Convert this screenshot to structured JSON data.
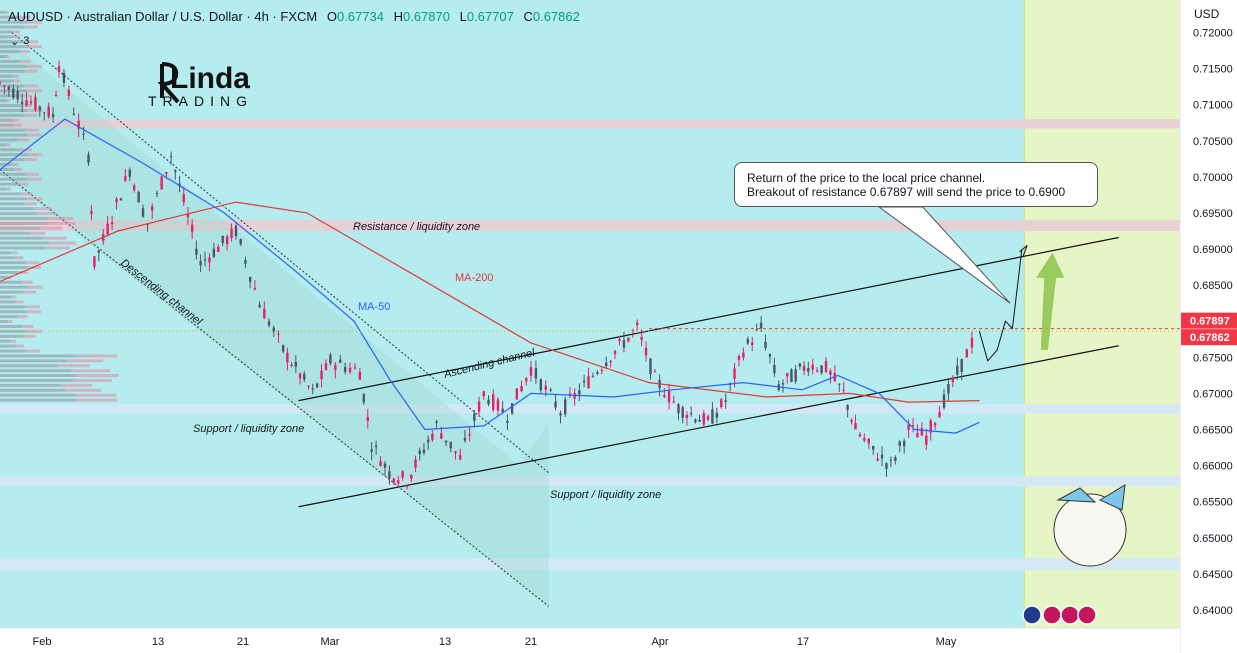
{
  "header": {
    "symbol": "AUDUSD",
    "description": "· Australian Dollar / U.S. Dollar · 4h · FXCM",
    "open_label": "O",
    "open": "0.67734",
    "high_label": "H",
    "high": "0.67870",
    "low_label": "L",
    "low": "0.67707",
    "close_label": "C",
    "close": "0.67862",
    "indicator_count": "3"
  },
  "currency": "USD",
  "logo": {
    "text": "Linda",
    "subtitle": "TRADING"
  },
  "callout": {
    "line1": "Return of the price to the local price channel.",
    "line2": "Breakout of resistance 0.67897 will send the price to 0.6900"
  },
  "colors": {
    "background_main": "#b4ecf0",
    "forecast_zone": "#e6f5c6",
    "zone_pink": "#e8cfd4",
    "zone_blue": "#d4e8f8",
    "ma200": "#e53935",
    "ma50": "#2962ff",
    "candle_up": "#e91e63",
    "candle_down": "#4a5568",
    "price_label_red": "#f23645",
    "forecast_arrow": "#8bc34a"
  },
  "chart_data": {
    "type": "candlestick",
    "ylim": [
      0.6375,
      0.7245
    ],
    "y_ticks": [
      "0.72000",
      "0.71500",
      "0.71000",
      "0.70500",
      "0.70000",
      "0.69500",
      "0.69000",
      "0.68500",
      "0.68000",
      "0.67500",
      "0.67000",
      "0.66500",
      "0.66000",
      "0.65500",
      "0.65000",
      "0.64500",
      "0.64000"
    ],
    "x_ticks": [
      "Feb",
      "13",
      "21",
      "Mar",
      "13",
      "21",
      "Apr",
      "17",
      "May"
    ],
    "price_labels": [
      {
        "value": "0.67897",
        "y": 0.67897,
        "color": "#f23645"
      },
      {
        "value": "0.67862",
        "y": 0.67862,
        "color": "#f23645"
      }
    ],
    "annotations": [
      {
        "text": "Resistance / liquidity zone",
        "type": "zone",
        "y_range": [
          0.6925,
          0.694
        ]
      },
      {
        "text": "Support / liquidity zone",
        "type": "zone",
        "y_range": [
          0.6672,
          0.6685
        ]
      },
      {
        "text": "Support / liquidity zone",
        "type": "zone",
        "y_range": [
          0.6571,
          0.6585
        ]
      },
      {
        "text": "Descending channel",
        "type": "channel"
      },
      {
        "text": "Ascending channel",
        "type": "channel"
      },
      {
        "text": "MA-200",
        "type": "series_label"
      },
      {
        "text": "MA-50",
        "type": "series_label"
      }
    ],
    "zones": [
      {
        "y_range": [
          0.7067,
          0.708
        ],
        "color": "#e8cfd4"
      },
      {
        "y_range": [
          0.6925,
          0.694
        ],
        "color": "#e8cfd4"
      },
      {
        "y_range": [
          0.6672,
          0.6685
        ],
        "color": "#d4e8f8"
      },
      {
        "y_range": [
          0.6571,
          0.6585
        ],
        "color": "#d4e8f8"
      },
      {
        "y_range": [
          0.6455,
          0.6472
        ],
        "color": "#d4e8f8"
      }
    ],
    "series": [
      {
        "name": "MA-200",
        "points": [
          [
            0.0,
            0.6855
          ],
          [
            0.1,
            0.6925
          ],
          [
            0.2,
            0.6965
          ],
          [
            0.26,
            0.695
          ],
          [
            0.35,
            0.6865
          ],
          [
            0.45,
            0.677
          ],
          [
            0.55,
            0.6715
          ],
          [
            0.65,
            0.6695
          ],
          [
            0.72,
            0.67
          ],
          [
            0.77,
            0.6688
          ],
          [
            0.83,
            0.669
          ]
        ]
      },
      {
        "name": "MA-50",
        "points": [
          [
            0.0,
            0.701
          ],
          [
            0.055,
            0.708
          ],
          [
            0.12,
            0.702
          ],
          [
            0.19,
            0.695
          ],
          [
            0.25,
            0.687
          ],
          [
            0.3,
            0.68
          ],
          [
            0.33,
            0.672
          ],
          [
            0.36,
            0.665
          ],
          [
            0.41,
            0.6655
          ],
          [
            0.45,
            0.67
          ],
          [
            0.52,
            0.6695
          ],
          [
            0.57,
            0.6705
          ],
          [
            0.63,
            0.6715
          ],
          [
            0.68,
            0.6705
          ],
          [
            0.71,
            0.6725
          ],
          [
            0.745,
            0.67
          ],
          [
            0.775,
            0.665
          ],
          [
            0.81,
            0.6645
          ],
          [
            0.83,
            0.666
          ]
        ]
      }
    ],
    "candles_segments": [
      [
        0.0,
        0.713
      ],
      [
        0.045,
        0.7085
      ],
      [
        0.05,
        0.7155
      ],
      [
        0.075,
        0.703
      ],
      [
        0.08,
        0.688
      ],
      [
        0.11,
        0.701
      ],
      [
        0.125,
        0.6935
      ],
      [
        0.145,
        0.703
      ],
      [
        0.17,
        0.688
      ],
      [
        0.2,
        0.6925
      ],
      [
        0.22,
        0.6825
      ],
      [
        0.24,
        0.676
      ],
      [
        0.265,
        0.67
      ],
      [
        0.28,
        0.6745
      ],
      [
        0.305,
        0.673
      ],
      [
        0.315,
        0.663
      ],
      [
        0.33,
        0.659
      ],
      [
        0.345,
        0.658
      ],
      [
        0.37,
        0.6655
      ],
      [
        0.39,
        0.661
      ],
      [
        0.41,
        0.67
      ],
      [
        0.43,
        0.667
      ],
      [
        0.45,
        0.6735
      ],
      [
        0.475,
        0.6675
      ],
      [
        0.495,
        0.671
      ],
      [
        0.51,
        0.674
      ],
      [
        0.54,
        0.679
      ],
      [
        0.555,
        0.672
      ],
      [
        0.575,
        0.668
      ],
      [
        0.6,
        0.666
      ],
      [
        0.615,
        0.669
      ],
      [
        0.63,
        0.676
      ],
      [
        0.645,
        0.679
      ],
      [
        0.66,
        0.671
      ],
      [
        0.685,
        0.674
      ],
      [
        0.7,
        0.6735
      ],
      [
        0.715,
        0.67
      ],
      [
        0.725,
        0.665
      ],
      [
        0.74,
        0.662
      ],
      [
        0.755,
        0.66
      ],
      [
        0.77,
        0.665
      ],
      [
        0.785,
        0.664
      ],
      [
        0.8,
        0.669
      ],
      [
        0.815,
        0.674
      ],
      [
        0.828,
        0.6786
      ]
    ],
    "forecast_path": [
      [
        0.83,
        0.6786
      ],
      [
        0.837,
        0.6745
      ],
      [
        0.845,
        0.676
      ],
      [
        0.852,
        0.68
      ],
      [
        0.858,
        0.679
      ],
      [
        0.866,
        0.69
      ]
    ]
  }
}
